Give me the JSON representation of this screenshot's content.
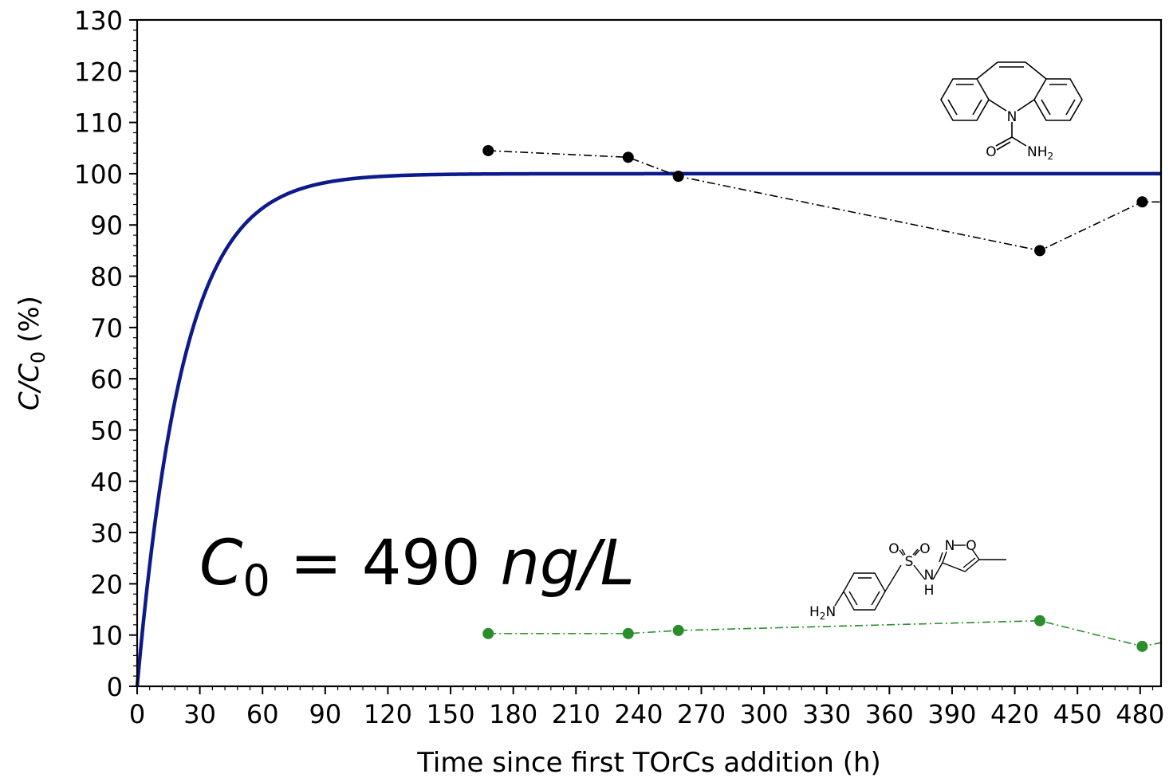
{
  "chart_data": {
    "type": "line",
    "xlabel": "Time since first TOrCs addition (h)",
    "ylabel_main": "C/C",
    "ylabel_sub": "0",
    "ylabel_rest": " (%)",
    "xlim": [
      0,
      490
    ],
    "ylim": [
      0,
      130
    ],
    "xticks": [
      0,
      30,
      60,
      90,
      120,
      150,
      180,
      210,
      240,
      270,
      300,
      330,
      360,
      390,
      420,
      450,
      480
    ],
    "yticks": [
      0,
      10,
      20,
      30,
      40,
      50,
      60,
      70,
      80,
      90,
      100,
      110,
      120,
      130
    ],
    "grid": false,
    "annotation": {
      "c": "C",
      "sub": "0",
      "eq": " = 490 ",
      "unit": "ng/L"
    },
    "fit_curve": {
      "color": "#0d1a8a",
      "plateau": 100,
      "rate": 0.045
    },
    "series": [
      {
        "color": "#000000",
        "style": "dash-dot",
        "x": [
          168,
          235,
          259,
          432,
          481,
          490
        ],
        "y": [
          104.5,
          103.2,
          99.5,
          85.0,
          94.5,
          94.5
        ],
        "markers": [
          true,
          true,
          true,
          true,
          true,
          false
        ]
      },
      {
        "color": "#2a8c2a",
        "style": "dash-dot",
        "x": [
          168,
          235,
          259,
          432,
          481,
          490
        ],
        "y": [
          10.3,
          10.3,
          10.9,
          12.8,
          7.8,
          8.5
        ],
        "markers": [
          true,
          true,
          true,
          true,
          true,
          false
        ]
      }
    ],
    "structure_labels": {
      "cbz_n": "N",
      "cbz_o": "O",
      "cbz_nh": "NH",
      "cbz_sub": "2",
      "smx_h": "H",
      "smx_sub": "2",
      "smx_n_amine": "N",
      "smx_s": "S",
      "smx_o1": "O",
      "smx_o2": "O",
      "smx_nh_n": "N",
      "smx_nh_h": "H",
      "smx_ring_n": "N",
      "smx_ring_o": "O"
    }
  }
}
